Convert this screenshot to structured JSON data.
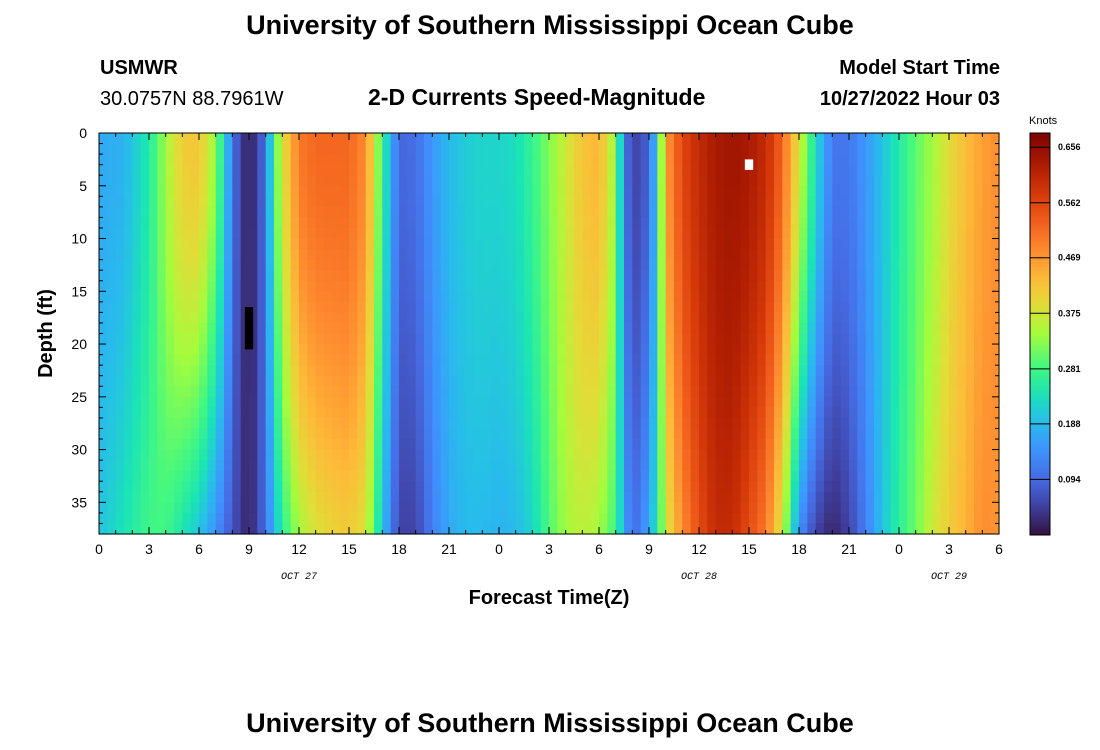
{
  "page": {
    "title": "University of Southern Mississippi Ocean Cube",
    "station_id": "USMWR",
    "coordinates": "30.0757N  88.7961W",
    "start_label": "Model Start Time",
    "start_value": "10/27/2022 Hour 03",
    "footer_title": "University of Southern Mississippi Ocean Cube"
  },
  "colors": {
    "background": "#ffffff",
    "missing": "#000000",
    "marker": "#ffffff"
  },
  "chart_data": {
    "type": "heatmap",
    "title": "2-D Currents Speed-Magnitude",
    "xlabel": "Forecast Time(Z)",
    "ylabel": "Depth (ft)",
    "xlim": [
      0,
      54
    ],
    "ylim": [
      0,
      38
    ],
    "y_inverted": true,
    "x_ticks": [
      0,
      3,
      6,
      9,
      12,
      15,
      18,
      21,
      24,
      27,
      30,
      33,
      36,
      39,
      42,
      45,
      48,
      51,
      54
    ],
    "x_tick_labels": [
      "0",
      "3",
      "6",
      "9",
      "12",
      "15",
      "18",
      "21",
      "0",
      "3",
      "6",
      "9",
      "12",
      "15",
      "18",
      "21",
      "0",
      "3",
      "6"
    ],
    "y_ticks": [
      0,
      5,
      10,
      15,
      20,
      25,
      30,
      35
    ],
    "y_tick_labels": [
      "0",
      "5",
      "10",
      "15",
      "20",
      "25",
      "30",
      "35"
    ],
    "date_labels": [
      {
        "x": 12,
        "text": "OCT 27"
      },
      {
        "x": 36,
        "text": "OCT 28"
      },
      {
        "x": 51,
        "text": "OCT 29"
      }
    ],
    "colorbar": {
      "unit": "Knots",
      "min": 0.0,
      "max": 0.68,
      "ticks": [
        0.094,
        0.188,
        0.281,
        0.375,
        0.469,
        0.562,
        0.656
      ],
      "tick_labels": [
        "0.094",
        "0.188",
        "0.281",
        "0.375",
        "0.469",
        "0.562",
        "0.656"
      ]
    },
    "time_step_hours": 0.5,
    "depth_step_ft": 1.0,
    "column_profiles": {
      "hours": [
        0,
        1.5,
        3,
        4,
        5,
        6,
        7,
        8,
        8.5,
        9,
        9.5,
        10,
        10.5,
        11,
        12,
        13,
        14,
        15,
        16,
        16.5,
        17,
        18,
        19,
        20,
        21,
        22,
        23,
        24,
        25,
        26,
        27,
        28,
        29,
        30,
        31,
        31.5,
        32,
        32.5,
        33,
        33.5,
        34,
        35,
        36,
        37,
        38,
        39,
        40,
        41,
        42,
        43,
        44,
        45,
        46,
        47,
        48,
        49,
        50,
        51,
        52,
        53,
        54
      ],
      "top_knots": [
        0.17,
        0.18,
        0.25,
        0.34,
        0.41,
        0.42,
        0.33,
        0.12,
        0.04,
        0.02,
        0.04,
        0.12,
        0.28,
        0.38,
        0.5,
        0.52,
        0.52,
        0.52,
        0.48,
        0.38,
        0.27,
        0.09,
        0.1,
        0.15,
        0.19,
        0.21,
        0.22,
        0.22,
        0.23,
        0.27,
        0.32,
        0.37,
        0.42,
        0.44,
        0.33,
        0.12,
        0.05,
        0.06,
        0.09,
        0.22,
        0.46,
        0.56,
        0.6,
        0.63,
        0.64,
        0.63,
        0.6,
        0.52,
        0.38,
        0.23,
        0.11,
        0.11,
        0.15,
        0.2,
        0.25,
        0.3,
        0.34,
        0.39,
        0.43,
        0.46,
        0.48
      ],
      "bottom_knots": [
        0.2,
        0.24,
        0.28,
        0.28,
        0.24,
        0.2,
        0.14,
        0.07,
        0.04,
        0.02,
        0.05,
        0.11,
        0.18,
        0.26,
        0.34,
        0.38,
        0.4,
        0.41,
        0.38,
        0.29,
        0.2,
        0.05,
        0.05,
        0.12,
        0.17,
        0.19,
        0.19,
        0.18,
        0.19,
        0.22,
        0.29,
        0.34,
        0.36,
        0.34,
        0.28,
        0.17,
        0.1,
        0.12,
        0.17,
        0.25,
        0.37,
        0.48,
        0.55,
        0.6,
        0.6,
        0.55,
        0.5,
        0.37,
        0.14,
        0.05,
        0.02,
        0.05,
        0.12,
        0.2,
        0.26,
        0.31,
        0.37,
        0.41,
        0.44,
        0.48,
        0.47
      ]
    },
    "missing_cells": [
      {
        "x_start": 8.75,
        "x_end": 9.25,
        "depth_start": 16.5,
        "depth_end": 20.5
      }
    ],
    "markers": [
      {
        "x_start": 38.75,
        "x_end": 39.25,
        "depth_start": 2.5,
        "depth_end": 3.5
      }
    ]
  }
}
